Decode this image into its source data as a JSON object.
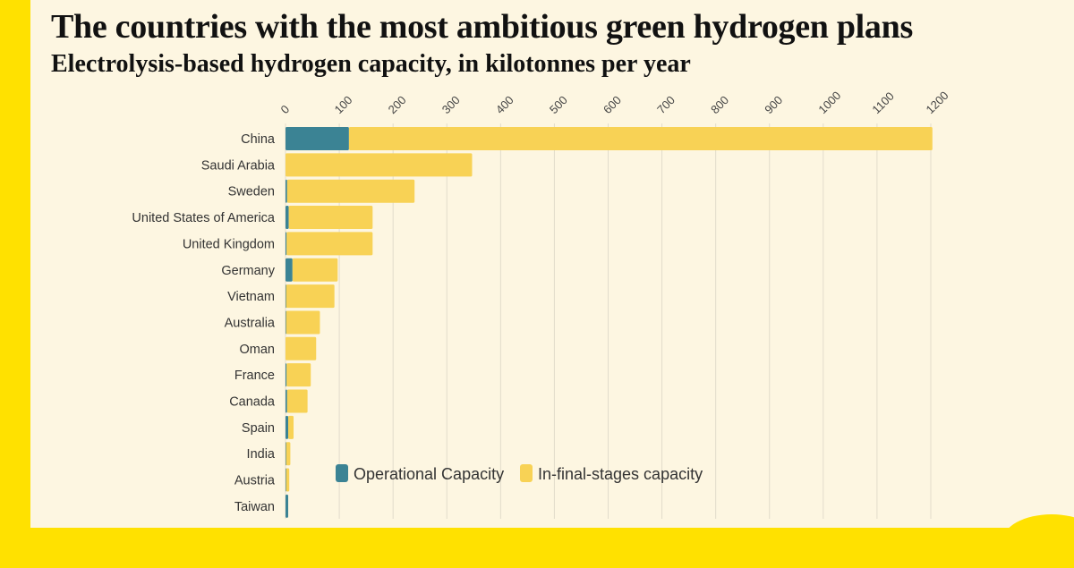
{
  "header": {
    "title": "The countries with the most ambitious green hydrogen plans",
    "subtitle": "Electrolysis-based hydrogen capacity, in kilotonnes per year"
  },
  "colors": {
    "operational": "#3b8394",
    "final_stages": "#f8d255",
    "gridline": "#e2dccb",
    "background": "#fdf6e1",
    "frame": "#ffe100"
  },
  "chart_data": {
    "type": "bar",
    "orientation": "horizontal",
    "stacked": true,
    "title": "The countries with the most ambitious green hydrogen plans",
    "subtitle": "Electrolysis-based hydrogen capacity, in kilotonnes per year",
    "xlim": [
      0,
      1200
    ],
    "xticks": [
      0,
      100,
      200,
      300,
      400,
      500,
      600,
      700,
      800,
      900,
      1000,
      1100,
      1200
    ],
    "grid": true,
    "legend_position": "bottom-center",
    "categories": [
      "China",
      "Saudi Arabia",
      "Sweden",
      "United States of America",
      "United Kingdom",
      "Germany",
      "Vietnam",
      "Australia",
      "Oman",
      "France",
      "Canada",
      "Spain",
      "India",
      "Austria",
      "Taiwan"
    ],
    "series": [
      {
        "name": "Operational Capacity",
        "color": "#3b8394",
        "values": [
          118,
          0,
          3,
          6,
          2,
          13,
          1,
          1,
          0,
          2,
          3,
          5,
          1,
          1,
          5
        ]
      },
      {
        "name": "In-final-stages capacity",
        "color": "#f8d255",
        "values": [
          1085,
          347,
          237,
          156,
          160,
          84,
          90,
          63,
          57,
          45,
          38,
          10,
          8,
          6,
          0
        ]
      }
    ]
  }
}
